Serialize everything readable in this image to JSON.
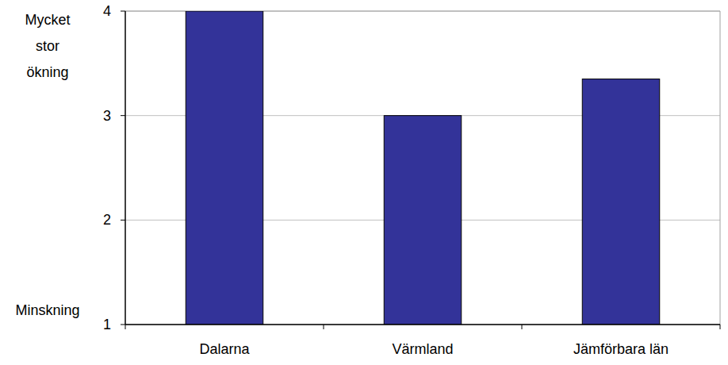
{
  "chart_data": {
    "type": "bar",
    "categories": [
      "Dalarna",
      "Värmland",
      "Jämförbara län"
    ],
    "values": [
      4,
      3,
      3.35
    ],
    "color": "#333399",
    "ylim": [
      1,
      4
    ],
    "yticks": [
      1,
      2,
      3,
      4
    ],
    "grid": true,
    "annotations": [
      {
        "text": "Mycket stor ökning",
        "y": 4
      },
      {
        "text": "Minskning",
        "y": 1
      }
    ]
  }
}
